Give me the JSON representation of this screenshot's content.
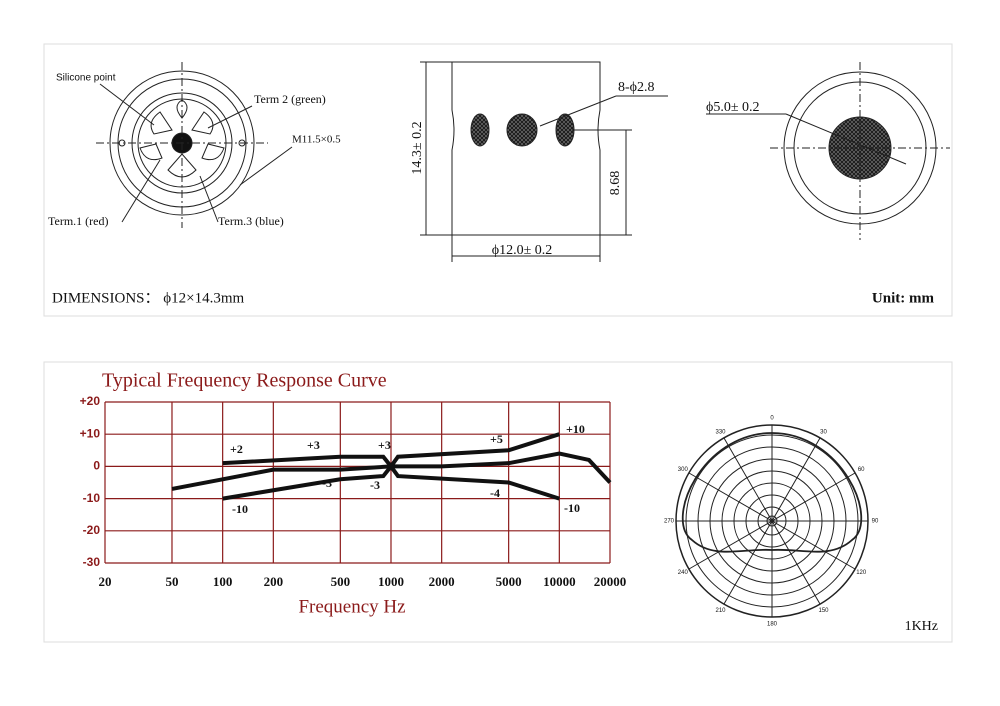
{
  "dimensions": {
    "front_view": {
      "silicone_point": "Silicone point",
      "term2": "Term 2 (green)",
      "thread": "M11.5×0.5",
      "term1": "Term.1 (red)",
      "term3": "Term.3 (blue)"
    },
    "side_view": {
      "height": "14.3± 0.2",
      "holes": "8-ϕ2.8",
      "hole_height": "8.68",
      "diameter": "ϕ12.0± 0.2"
    },
    "back_view": {
      "diameter": "ϕ5.0± 0.2"
    },
    "caption": "DIMENSIONS： ϕ12×14.3mm",
    "unit": "Unit: mm"
  },
  "chart_data": {
    "type": "line",
    "title": "Typical Frequency Response Curve",
    "x_label": "Frequency  Hz",
    "log_x": true,
    "xlim": [
      20,
      20000
    ],
    "xticks": [
      20,
      50,
      100,
      200,
      500,
      1000,
      2000,
      5000,
      10000,
      20000
    ],
    "ylim": [
      -30,
      20
    ],
    "yticks": [
      {
        "value": 20,
        "label": "+20"
      },
      {
        "value": 10,
        "label": "+10"
      },
      0,
      -10,
      -20,
      -30
    ],
    "grid": true,
    "grid_color": "#8b1a1a",
    "series": [
      {
        "color": "#111111",
        "x": [
          50,
          100,
          200,
          500,
          1000,
          2000,
          5000,
          10000,
          15000,
          20000
        ],
        "values": [
          -7,
          -4,
          -1,
          -1,
          0,
          0,
          1,
          4,
          2,
          -5
        ]
      },
      {
        "color": "#111111",
        "x": [
          100,
          500,
          900,
          1000
        ],
        "values": [
          1,
          3,
          3,
          0
        ]
      },
      {
        "color": "#111111",
        "x": [
          100,
          500,
          900,
          1000
        ],
        "values": [
          -10,
          -4,
          -3,
          0
        ]
      },
      {
        "color": "#111111",
        "x": [
          1000,
          1100,
          5000,
          10000
        ],
        "values": [
          0,
          3,
          5,
          10
        ]
      },
      {
        "color": "#111111",
        "x": [
          1000,
          1100,
          5000,
          10000
        ],
        "values": [
          0,
          -3,
          -5,
          -10
        ]
      }
    ],
    "annotations": [
      "+2",
      "+3",
      "-3",
      "+3",
      "-3",
      "+5",
      "-4",
      "+10",
      "-10",
      "-10"
    ]
  },
  "polar": {
    "angles": [
      "0",
      "30",
      "60",
      "90",
      "120",
      "150",
      "180",
      "210",
      "240",
      "270",
      "300",
      "330"
    ],
    "frequency": "1KHz"
  }
}
